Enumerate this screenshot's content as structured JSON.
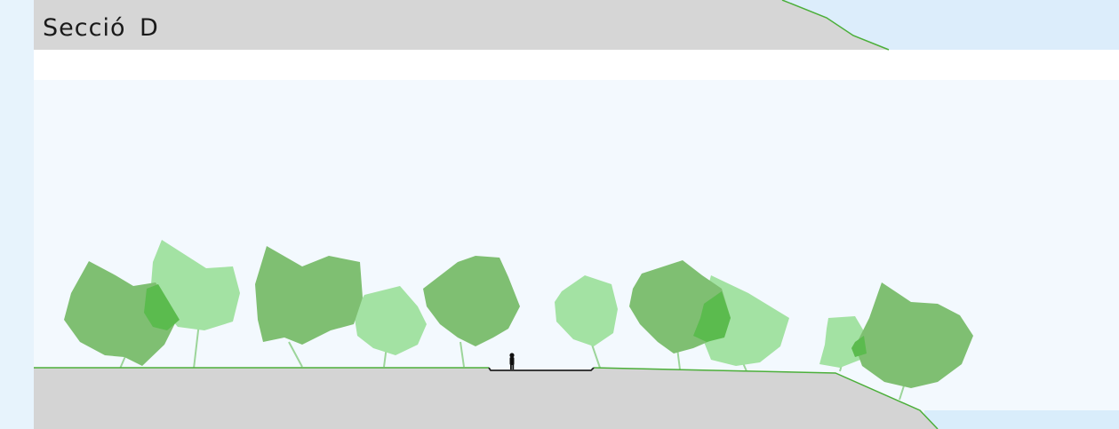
{
  "section": {
    "title": "Secció  D"
  },
  "colors": {
    "sky": "#eef7fd",
    "sky_edge": "#d9edfb",
    "ground": "#d4d4d4",
    "ground_line": "#4caf3a",
    "tree_dark": "#7fbf72",
    "tree_light": "#a3e2a3",
    "tree_overlap": "#5bbb4e",
    "trunk": "#9cd59a",
    "path_line": "#222222",
    "figure": "#111111"
  }
}
